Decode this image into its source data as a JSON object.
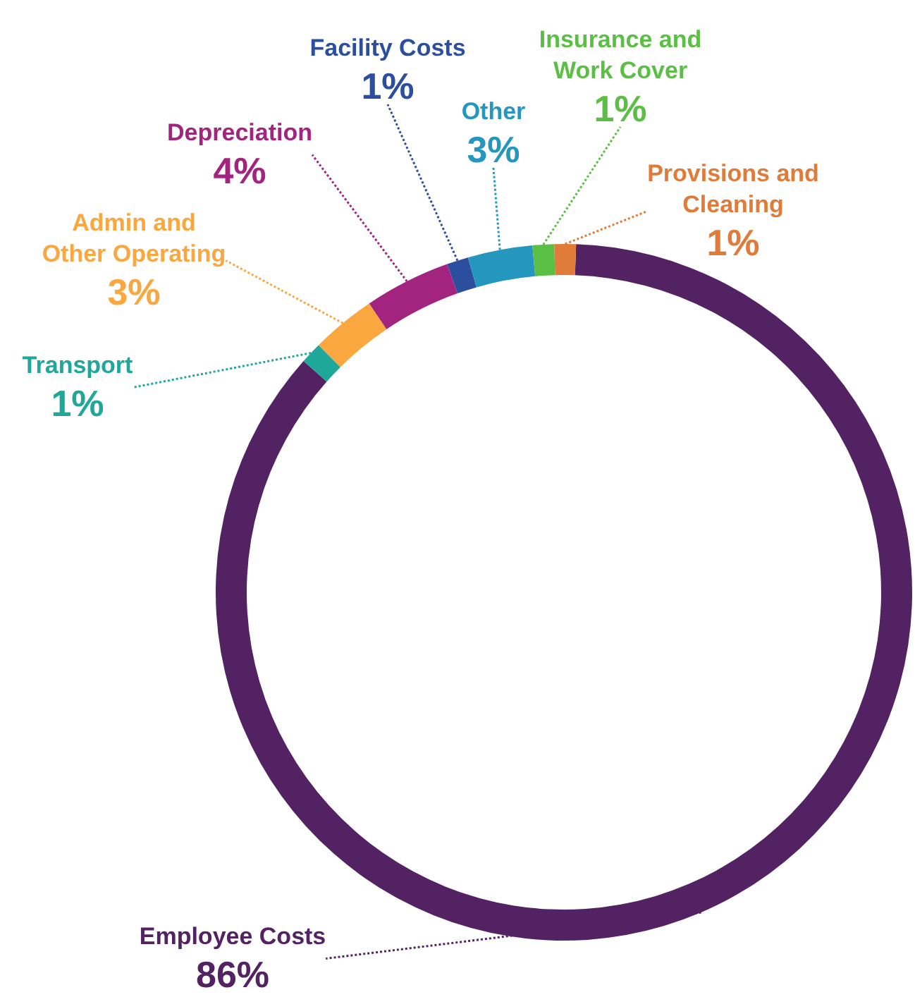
{
  "chart_data": {
    "type": "donut",
    "categories": [
      "Employee Costs",
      "Transport",
      "Admin and Other Operating",
      "Depreciation",
      "Facility Costs",
      "Other",
      "Insurance and Work Cover",
      "Provisions and Cleaning"
    ],
    "values": [
      86,
      1,
      3,
      4,
      1,
      3,
      1,
      1
    ],
    "colors": [
      "#532262",
      "#1fa89a",
      "#f9a73e",
      "#a3247f",
      "#2c4e9e",
      "#2596be",
      "#5bbf45",
      "#e07b39"
    ],
    "value_labels": [
      "86%",
      "1%",
      "3%",
      "4%",
      "1%",
      "3%",
      "1%",
      "1%"
    ],
    "legend": false
  }
}
